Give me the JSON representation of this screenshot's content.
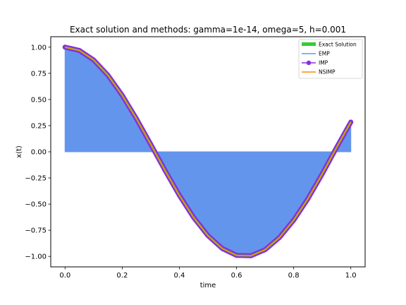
{
  "chart_data": {
    "type": "line",
    "title": "Exact solution and methods: gamma=1e-14, omega=5, h=0.001",
    "xlabel": "time",
    "ylabel": "x(t)",
    "xlim": [
      -0.05,
      1.05
    ],
    "ylim": [
      -1.1,
      1.1
    ],
    "xticks": [
      0.0,
      0.2,
      0.4,
      0.6,
      0.8,
      1.0
    ],
    "xtick_labels": [
      "0.0",
      "0.2",
      "0.4",
      "0.6",
      "0.8",
      "1.0"
    ],
    "yticks": [
      1.0,
      0.75,
      0.5,
      0.25,
      0.0,
      -0.25,
      -0.5,
      -0.75,
      -1.0
    ],
    "ytick_labels": [
      "1.00",
      "0.75",
      "0.50",
      "0.25",
      "0.00",
      "−0.25",
      "−0.50",
      "−0.75",
      "−1.00"
    ],
    "grid": false,
    "legend_position": "top-right",
    "x": [
      0.0,
      0.05,
      0.1,
      0.15,
      0.2,
      0.25,
      0.3,
      0.35,
      0.4,
      0.45,
      0.5,
      0.55,
      0.6,
      0.65,
      0.7,
      0.75,
      0.8,
      0.85,
      0.9,
      0.95,
      1.0
    ],
    "series": [
      {
        "name": "Exact Solution",
        "color": "#32cd32",
        "values": [
          1.0,
          0.969,
          0.878,
          0.732,
          0.54,
          0.315,
          0.071,
          -0.178,
          -0.416,
          -0.628,
          -0.801,
          -0.924,
          -0.99,
          -0.994,
          -0.936,
          -0.82,
          -0.654,
          -0.448,
          -0.211,
          0.04,
          0.284
        ]
      },
      {
        "name": "EMP",
        "color": "#6495ed",
        "values": [
          1.0,
          0.969,
          0.878,
          0.732,
          0.54,
          0.315,
          0.071,
          -0.178,
          -0.416,
          -0.628,
          -0.801,
          -0.924,
          -0.99,
          -0.994,
          -0.936,
          -0.82,
          -0.654,
          -0.448,
          -0.211,
          0.04,
          0.284
        ]
      },
      {
        "name": "IMP",
        "color": "#8a2be2",
        "values": [
          1.0,
          0.969,
          0.878,
          0.732,
          0.54,
          0.315,
          0.071,
          -0.178,
          -0.416,
          -0.628,
          -0.801,
          -0.924,
          -0.99,
          -0.994,
          -0.936,
          -0.82,
          -0.654,
          -0.448,
          -0.211,
          0.04,
          0.284
        ]
      },
      {
        "name": "NSIMP",
        "color": "#ff8c00",
        "values": [
          1.0,
          0.969,
          0.878,
          0.732,
          0.54,
          0.315,
          0.071,
          -0.178,
          -0.416,
          -0.628,
          -0.801,
          -0.924,
          -0.99,
          -0.994,
          -0.936,
          -0.82,
          -0.654,
          -0.448,
          -0.211,
          0.04,
          0.284
        ]
      }
    ]
  }
}
